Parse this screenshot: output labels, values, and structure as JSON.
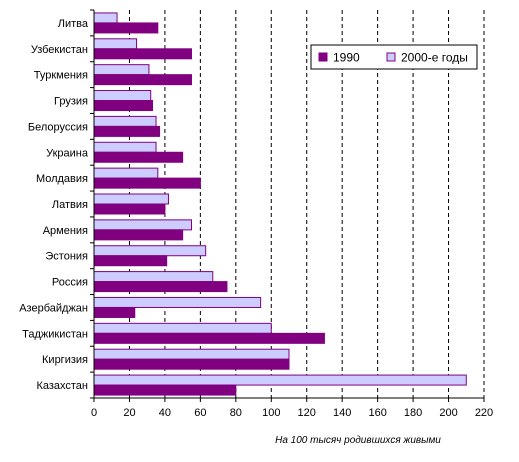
{
  "chart_data": {
    "type": "bar",
    "orientation": "horizontal",
    "title": "",
    "xlabel": "На 100 тысяч родившихся живыми",
    "ylabel": "",
    "xlim": [
      0,
      220
    ],
    "xticks": [
      0,
      20,
      40,
      60,
      80,
      100,
      120,
      140,
      160,
      180,
      200,
      220
    ],
    "grid": "vertical dashed",
    "legend_position": "top-right",
    "categories": [
      "Литва",
      "Узбекистан",
      "Туркмения",
      "Грузия",
      "Белоруссия",
      "Украина",
      "Молдавия",
      "Латвия",
      "Армения",
      "Эстония",
      "Россия",
      "Азербайджан",
      "Таджикистан",
      "Киргизия",
      "Казахстан"
    ],
    "series": [
      {
        "name": "1990",
        "color": "#800080",
        "values": [
          36,
          55,
          55,
          33,
          37,
          50,
          60,
          40,
          50,
          41,
          75,
          23,
          130,
          110,
          80
        ]
      },
      {
        "name": "2000-е годы",
        "color": "#ccccff",
        "values": [
          13,
          24,
          31,
          32,
          35,
          35,
          36,
          42,
          55,
          63,
          67,
          94,
          100,
          110,
          210
        ]
      }
    ]
  }
}
